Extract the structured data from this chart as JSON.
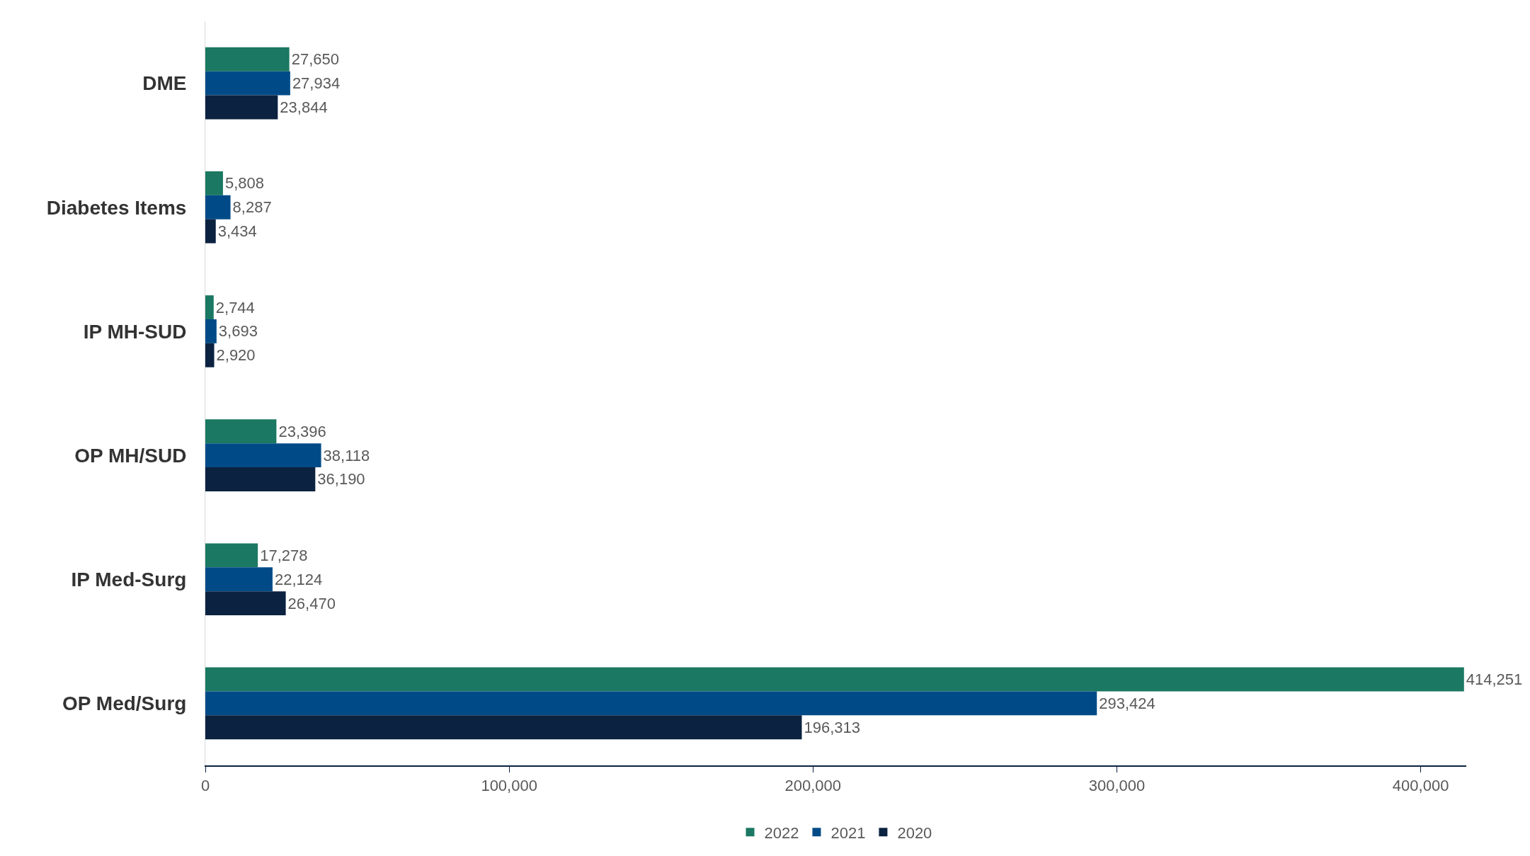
{
  "chart_data": {
    "type": "bar",
    "orientation": "horizontal",
    "categories": [
      "DME",
      "Diabetes Items",
      "IP MH-SUD",
      "OP MH/SUD",
      "IP Med-Surg",
      "OP Med/Surg"
    ],
    "series": [
      {
        "name": "2022",
        "color": "#1b7862",
        "values": [
          27650,
          5808,
          2744,
          23396,
          17278,
          414251
        ],
        "value_labels": [
          "27,650",
          "5,808",
          "2,744",
          "23,396",
          "17,278",
          "414,251"
        ]
      },
      {
        "name": "2021",
        "color": "#004b87",
        "values": [
          27934,
          8287,
          3693,
          38118,
          22124,
          293424
        ],
        "value_labels": [
          "27,934",
          "8,287",
          "3,693",
          "38,118",
          "22,124",
          "293,424"
        ]
      },
      {
        "name": "2020",
        "color": "#0b2240",
        "values": [
          23844,
          3434,
          2920,
          36190,
          26470,
          196313
        ],
        "value_labels": [
          "23,844",
          "3,434",
          "2,920",
          "36,190",
          "26,470",
          "196,313"
        ]
      }
    ],
    "xlim": [
      0,
      415000
    ],
    "xticks": [
      {
        "value": 0,
        "label": "0"
      },
      {
        "value": 100000,
        "label": "100,000"
      },
      {
        "value": 200000,
        "label": "200,000"
      },
      {
        "value": 300000,
        "label": "300,000"
      },
      {
        "value": 400000,
        "label": "400,000"
      }
    ],
    "legend": "bottom"
  }
}
